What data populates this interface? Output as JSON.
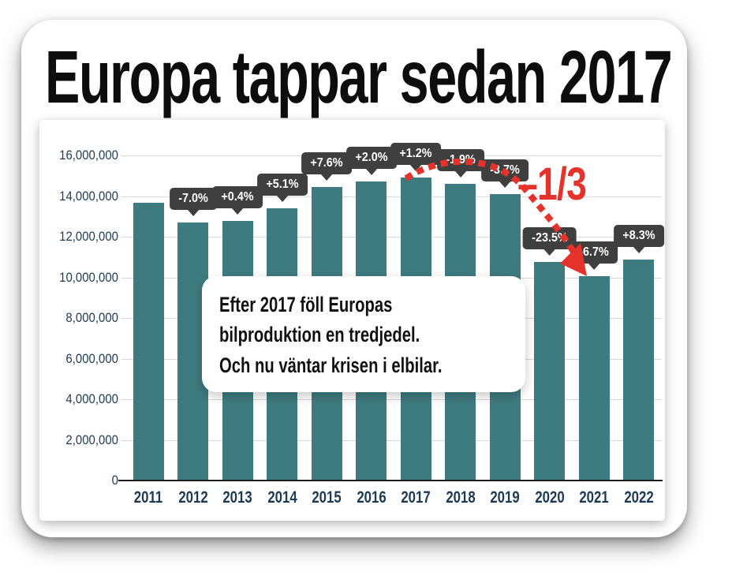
{
  "title": "Europa tappar sedan 2017",
  "chart_data": {
    "type": "bar",
    "title": "Europa tappar sedan 2017",
    "categories": [
      "2011",
      "2012",
      "2013",
      "2014",
      "2015",
      "2016",
      "2017",
      "2018",
      "2019",
      "2020",
      "2021",
      "2022"
    ],
    "values": [
      13660000,
      12700000,
      12760000,
      13410000,
      14430000,
      14720000,
      14900000,
      14620000,
      14080000,
      10770000,
      10050000,
      10880000
    ],
    "pct_labels": [
      null,
      "-7.0%",
      "+0.4%",
      "+5.1%",
      "+7.6%",
      "+2.0%",
      "+1.2%",
      "-1.9%",
      "-3.7%",
      "-23.5%",
      "-6.7%",
      "+8.3%"
    ],
    "ylim": [
      0,
      16000000
    ],
    "ytick_step": 2000000,
    "ytick_labels": [
      "0",
      "2,000,000",
      "4,000,000",
      "6,000,000",
      "8,000,000",
      "10,000,000",
      "12,000,000",
      "14,000,000",
      "16,000,000"
    ],
    "xlabel": "",
    "ylabel": "",
    "grid": true,
    "legend": "none",
    "bar_color": "#3e7b80",
    "axis_label_color": "#1d3a55",
    "gridline_color": "#d9d9d9"
  },
  "annotations": {
    "drop_label": "–1/3",
    "accent_red": "#e5332b",
    "callout_bg": "#3f3f3f",
    "note_lines": [
      "Efter 2017 föll Europas",
      "bilproduktion en tredjedel.",
      "Och nu väntar krisen i elbilar."
    ]
  }
}
